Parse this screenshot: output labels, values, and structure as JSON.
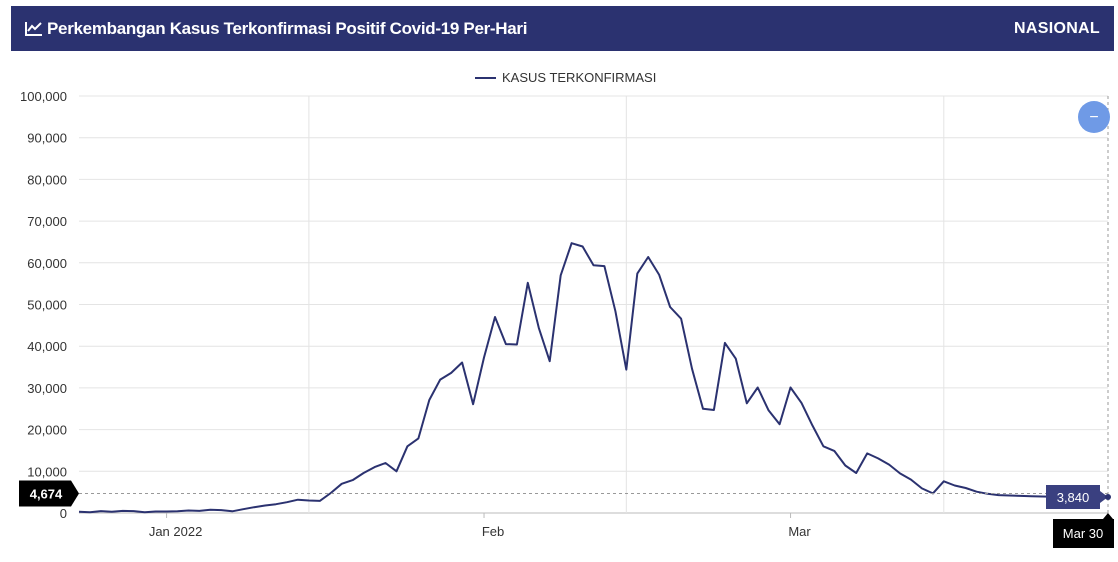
{
  "header": {
    "icon": "line-chart-icon",
    "title": "Perkembangan Kasus Terkonfirmasi Positif Covid-19 Per-Hari",
    "region": "NASIONAL",
    "background_color": "#2b3270"
  },
  "controls": {
    "zoom_out_icon": "minus-icon",
    "zoom_out_label": "−",
    "button_color": "#6f9ae6"
  },
  "crosshair": {
    "y_label": "4,674",
    "y_value": 4674,
    "x_label": "Mar 30",
    "tooltip_value": "3,840"
  },
  "chart_data": {
    "type": "line",
    "title": "",
    "xlabel": "",
    "ylabel": "",
    "ylim": [
      0,
      100000
    ],
    "y_ticks": [
      0,
      10000,
      20000,
      30000,
      40000,
      50000,
      60000,
      70000,
      80000,
      90000,
      100000
    ],
    "y_tick_labels": [
      "0",
      "10,000",
      "20,000",
      "30,000",
      "40,000",
      "50,000",
      "60,000",
      "70,000",
      "80,000",
      "90,000",
      "100,000"
    ],
    "x_range": [
      "2021-12-26",
      "2022-03-30"
    ],
    "x_ticks": [
      {
        "date": "2022-01-03",
        "label": "Jan 2022"
      },
      {
        "date": "2022-02-01",
        "label": "Feb"
      },
      {
        "date": "2022-03-01",
        "label": "Mar"
      }
    ],
    "x_gridlines": [
      "2022-01-16",
      "2022-02-14",
      "2022-03-15"
    ],
    "legend": {
      "position": "top-center"
    },
    "line_color": "#2b3270",
    "series": [
      {
        "name": "KASUS TERKONFIRMASI",
        "points": [
          [
            "2021-12-26",
            300
          ],
          [
            "2021-12-27",
            200
          ],
          [
            "2021-12-28",
            450
          ],
          [
            "2021-12-29",
            300
          ],
          [
            "2021-12-30",
            500
          ],
          [
            "2021-12-31",
            450
          ],
          [
            "2022-01-01",
            200
          ],
          [
            "2022-01-02",
            350
          ],
          [
            "2022-01-03",
            350
          ],
          [
            "2022-01-04",
            400
          ],
          [
            "2022-01-05",
            600
          ],
          [
            "2022-01-06",
            500
          ],
          [
            "2022-01-07",
            800
          ],
          [
            "2022-01-08",
            700
          ],
          [
            "2022-01-09",
            400
          ],
          [
            "2022-01-10",
            900
          ],
          [
            "2022-01-11",
            1400
          ],
          [
            "2022-01-12",
            1800
          ],
          [
            "2022-01-13",
            2100
          ],
          [
            "2022-01-14",
            2600
          ],
          [
            "2022-01-15",
            3200
          ],
          [
            "2022-01-16",
            3000
          ],
          [
            "2022-01-17",
            2900
          ],
          [
            "2022-01-18",
            4800
          ],
          [
            "2022-01-19",
            7000
          ],
          [
            "2022-01-20",
            7900
          ],
          [
            "2022-01-21",
            9600
          ],
          [
            "2022-01-22",
            11000
          ],
          [
            "2022-01-23",
            12000
          ],
          [
            "2022-01-24",
            10000
          ],
          [
            "2022-01-25",
            16000
          ],
          [
            "2022-01-26",
            17900
          ],
          [
            "2022-01-27",
            27100
          ],
          [
            "2022-01-28",
            32000
          ],
          [
            "2022-01-29",
            33600
          ],
          [
            "2022-01-30",
            36100
          ],
          [
            "2022-01-31",
            26100
          ],
          [
            "2022-02-01",
            37300
          ],
          [
            "2022-02-02",
            47000
          ],
          [
            "2022-02-03",
            40500
          ],
          [
            "2022-02-04",
            40400
          ],
          [
            "2022-02-05",
            55200
          ],
          [
            "2022-02-06",
            44400
          ],
          [
            "2022-02-07",
            36400
          ],
          [
            "2022-02-08",
            57000
          ],
          [
            "2022-02-09",
            64700
          ],
          [
            "2022-02-10",
            63900
          ],
          [
            "2022-02-11",
            59400
          ],
          [
            "2022-02-12",
            59200
          ],
          [
            "2022-02-13",
            48400
          ],
          [
            "2022-02-14",
            34400
          ],
          [
            "2022-02-15",
            57400
          ],
          [
            "2022-02-16",
            61400
          ],
          [
            "2022-02-17",
            57100
          ],
          [
            "2022-02-18",
            49400
          ],
          [
            "2022-02-19",
            46600
          ],
          [
            "2022-02-20",
            34600
          ],
          [
            "2022-02-21",
            25000
          ],
          [
            "2022-02-22",
            24700
          ],
          [
            "2022-02-23",
            40800
          ],
          [
            "2022-02-24",
            37000
          ],
          [
            "2022-02-25",
            26300
          ],
          [
            "2022-02-26",
            30100
          ],
          [
            "2022-02-27",
            24600
          ],
          [
            "2022-02-28",
            21300
          ],
          [
            "2022-03-01",
            30100
          ],
          [
            "2022-03-02",
            26400
          ],
          [
            "2022-03-03",
            21000
          ],
          [
            "2022-03-04",
            16000
          ],
          [
            "2022-03-05",
            14900
          ],
          [
            "2022-03-06",
            11400
          ],
          [
            "2022-03-07",
            9600
          ],
          [
            "2022-03-08",
            14300
          ],
          [
            "2022-03-09",
            13100
          ],
          [
            "2022-03-10",
            11600
          ],
          [
            "2022-03-11",
            9500
          ],
          [
            "2022-03-12",
            8000
          ],
          [
            "2022-03-13",
            5900
          ],
          [
            "2022-03-14",
            4700
          ],
          [
            "2022-03-15",
            7600
          ],
          [
            "2022-03-16",
            6600
          ],
          [
            "2022-03-17",
            6000
          ],
          [
            "2022-03-18",
            5100
          ],
          [
            "2022-03-19",
            4600
          ],
          [
            "2022-03-20",
            4300
          ],
          [
            "2022-03-21",
            4200
          ],
          [
            "2022-03-22",
            4100
          ],
          [
            "2022-03-23",
            4000
          ],
          [
            "2022-03-24",
            3950
          ],
          [
            "2022-03-25",
            3900
          ],
          [
            "2022-03-26",
            3880
          ],
          [
            "2022-03-27",
            3860
          ],
          [
            "2022-03-28",
            3850
          ],
          [
            "2022-03-29",
            3845
          ],
          [
            "2022-03-30",
            3840
          ]
        ]
      }
    ]
  }
}
